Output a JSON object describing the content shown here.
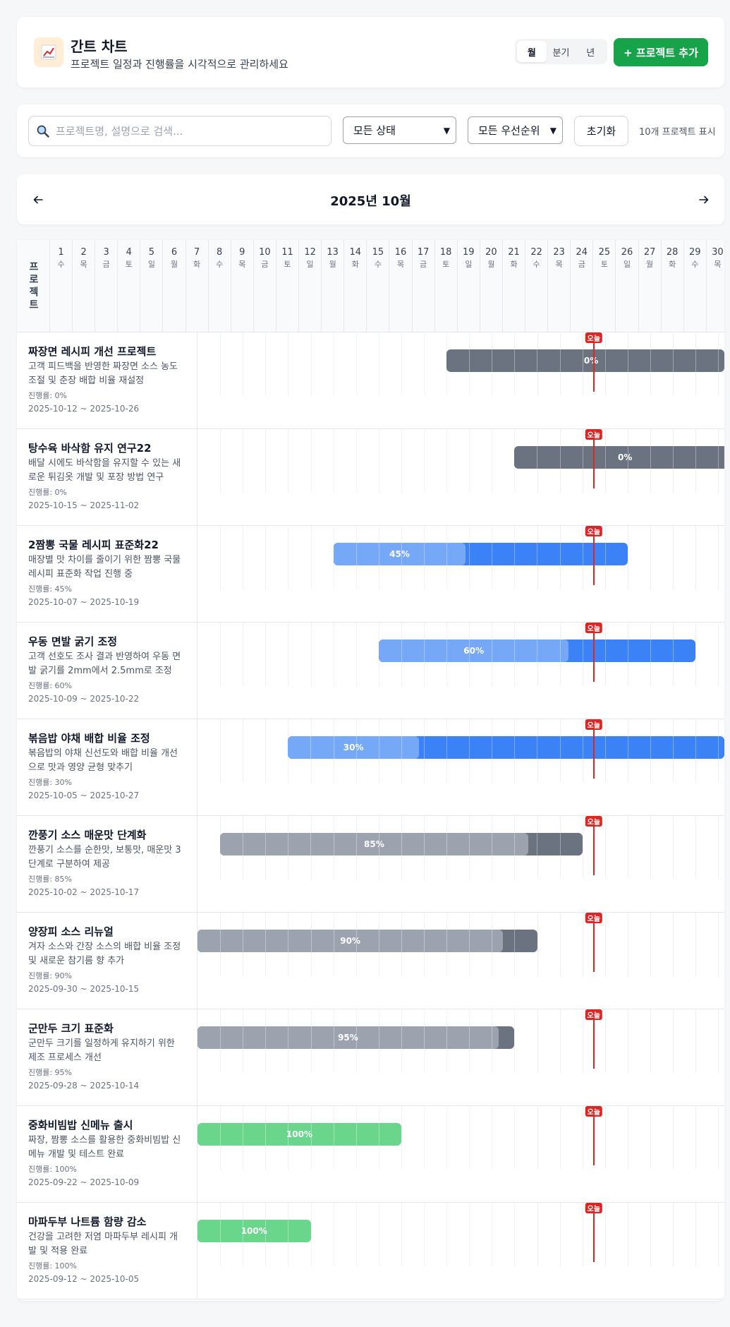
{
  "header": {
    "title": "간트 차트",
    "subtitle": "프로젝트 일정과 진행률을 시각적으로 관리하세요",
    "logo_icon": "chart-icon",
    "view_modes": [
      "월",
      "분기",
      "년"
    ],
    "active_view": "월",
    "add_button": "+ 프로젝트 추가"
  },
  "filters": {
    "search_placeholder": "프로젝트명, 설명으로 검색...",
    "search_value": "",
    "status_select": "모든 상태",
    "priority_select": "모든 우선순위",
    "reset_button": "초기화",
    "count_text": "10개 프로젝트 표시"
  },
  "calendar": {
    "month_title": "2025년 10월",
    "year": 2025,
    "month": 10,
    "today": "2025-10-18",
    "today_label": "오늘",
    "project_header": "프로젝트",
    "weekdays": [
      "일",
      "월",
      "화",
      "수",
      "목",
      "금",
      "토"
    ]
  },
  "colors": {
    "gray_dark": "#6b7280",
    "gray_light": "#9ca3af",
    "blue_dark": "#3b82f6",
    "blue_light": "#76a8f8",
    "green": "#6ad68c",
    "today_red": "#dc2626",
    "add_button": "#16a34a"
  },
  "projects": [
    {
      "name": "짜장면 레시피 개선 프로젝트",
      "description": "고객 피드백을 반영한 짜장면 소스 농도 조절 및 춘장 배합 비율 재설정",
      "progress_text": "진행률: 0%",
      "dates": "2025-10-12 ~ 2025-10-26",
      "start": "2025-10-12",
      "end": "2025-10-26",
      "progress": 0,
      "bar_label": "0%",
      "color": "gray"
    },
    {
      "name": "탕수육 바삭함 유지 연구22",
      "description": "배달 시에도 바삭함을 유지할 수 있는 새로운 튀김옷 개발 및 포장 방법 연구",
      "progress_text": "진행률: 0%",
      "dates": "2025-10-15 ~ 2025-11-02",
      "start": "2025-10-15",
      "end": "2025-11-02",
      "progress": 0,
      "bar_label": "0%",
      "color": "gray"
    },
    {
      "name": "2짬뽕 국물 레시피 표준화22",
      "description": "매장별 맛 차이를 줄이기 위한 짬뽕 국물 레시피 표준화 작업 진행 중",
      "progress_text": "진행률: 45%",
      "dates": "2025-10-07 ~ 2025-10-19",
      "start": "2025-10-07",
      "end": "2025-10-19",
      "progress": 45,
      "bar_label": "45%",
      "color": "blue"
    },
    {
      "name": "우동 면발 굵기 조정",
      "description": "고객 선호도 조사 결과 반영하여 우동 면발 굵기를 2mm에서 2.5mm로 조정",
      "progress_text": "진행률: 60%",
      "dates": "2025-10-09 ~ 2025-10-22",
      "start": "2025-10-09",
      "end": "2025-10-22",
      "progress": 60,
      "bar_label": "60%",
      "color": "blue"
    },
    {
      "name": "볶음밥 야채 배합 비율 조정",
      "description": "볶음밥의 야채 신선도와 배합 비율 개선으로 맛과 영양 균형 맞추기",
      "progress_text": "진행률: 30%",
      "dates": "2025-10-05 ~ 2025-10-27",
      "start": "2025-10-05",
      "end": "2025-10-27",
      "progress": 30,
      "bar_label": "30%",
      "color": "blue"
    },
    {
      "name": "깐풍기 소스 매운맛 단계화",
      "description": "깐풍기 소스를 순한맛, 보통맛, 매운맛 3단계로 구분하여 제공",
      "progress_text": "진행률: 85%",
      "dates": "2025-10-02 ~ 2025-10-17",
      "start": "2025-10-02",
      "end": "2025-10-17",
      "progress": 85,
      "bar_label": "85%",
      "color": "gray"
    },
    {
      "name": "양장피 소스 리뉴얼",
      "description": "겨자 소스와 간장 소스의 배합 비율 조정 및 새로운 참기름 향 추가",
      "progress_text": "진행률: 90%",
      "dates": "2025-09-30 ~ 2025-10-15",
      "start": "2025-09-30",
      "end": "2025-10-15",
      "progress": 90,
      "bar_label": "90%",
      "color": "gray"
    },
    {
      "name": "군만두 크기 표준화",
      "description": "군만두 크기를 일정하게 유지하기 위한 제조 프로세스 개선",
      "progress_text": "진행률: 95%",
      "dates": "2025-09-28 ~ 2025-10-14",
      "start": "2025-09-28",
      "end": "2025-10-14",
      "progress": 95,
      "bar_label": "95%",
      "color": "gray"
    },
    {
      "name": "중화비빔밥 신메뉴 출시",
      "description": "짜장, 짬뽕 소스를 활용한 중화비빔밥 신메뉴 개발 및 테스트 완료",
      "progress_text": "진행률: 100%",
      "dates": "2025-09-22 ~ 2025-10-09",
      "start": "2025-09-22",
      "end": "2025-10-09",
      "progress": 100,
      "bar_label": "100%",
      "color": "green"
    },
    {
      "name": "마파두부 나트륨 함량 감소",
      "description": "건강을 고려한 저염 마파두부 레시피 개발 및 적용 완료",
      "progress_text": "진행률: 100%",
      "dates": "2025-09-12 ~ 2025-10-05",
      "start": "2025-09-12",
      "end": "2025-10-05",
      "progress": 100,
      "bar_label": "100%",
      "color": "green"
    }
  ]
}
